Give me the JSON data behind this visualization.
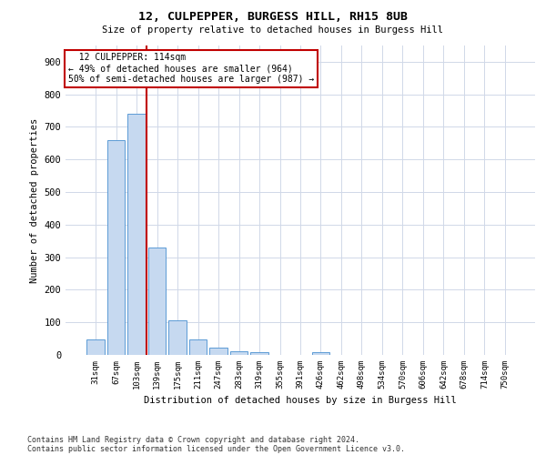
{
  "title": "12, CULPEPPER, BURGESS HILL, RH15 8UB",
  "subtitle": "Size of property relative to detached houses in Burgess Hill",
  "xlabel": "Distribution of detached houses by size in Burgess Hill",
  "ylabel": "Number of detached properties",
  "footnote1": "Contains HM Land Registry data © Crown copyright and database right 2024.",
  "footnote2": "Contains public sector information licensed under the Open Government Licence v3.0.",
  "annotation_title": "12 CULPEPPER: 114sqm",
  "annotation_line1": "← 49% of detached houses are smaller (964)",
  "annotation_line2": "50% of semi-detached houses are larger (987) →",
  "bar_categories": [
    "31sqm",
    "67sqm",
    "103sqm",
    "139sqm",
    "175sqm",
    "211sqm",
    "247sqm",
    "283sqm",
    "319sqm",
    "355sqm",
    "391sqm",
    "426sqm",
    "462sqm",
    "498sqm",
    "534sqm",
    "570sqm",
    "606sqm",
    "642sqm",
    "678sqm",
    "714sqm",
    "750sqm"
  ],
  "bar_values": [
    47,
    660,
    740,
    330,
    105,
    47,
    22,
    12,
    8,
    0,
    0,
    8,
    0,
    0,
    0,
    0,
    0,
    0,
    0,
    0,
    0
  ],
  "bar_color": "#c6d9f0",
  "bar_edge_color": "#5b9bd5",
  "vline_x": 2.5,
  "vline_color": "#c00000",
  "ylim": [
    0,
    950
  ],
  "yticks": [
    0,
    100,
    200,
    300,
    400,
    500,
    600,
    700,
    800,
    900
  ],
  "annotation_box_color": "#c00000",
  "bg_color": "#ffffff",
  "grid_color": "#d0d8e8"
}
